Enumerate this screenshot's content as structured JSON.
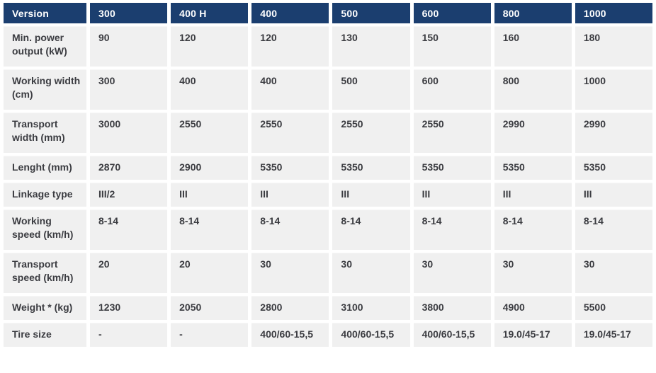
{
  "table": {
    "header": [
      "Version",
      "300",
      "400 H",
      "400",
      "500",
      "600",
      "800",
      "1000"
    ],
    "rows": [
      {
        "label": "Min. power output (kW)",
        "values": [
          "90",
          "120",
          "120",
          "130",
          "150",
          "160",
          "180"
        ]
      },
      {
        "label": "Working width (cm)",
        "values": [
          "300",
          "400",
          "400",
          "500",
          "600",
          "800",
          "1000"
        ]
      },
      {
        "label": "Transport width (mm)",
        "values": [
          "3000",
          "2550",
          "2550",
          "2550",
          "2550",
          "2990",
          "2990"
        ]
      },
      {
        "label": "Lenght (mm)",
        "values": [
          "2870",
          "2900",
          "5350",
          "5350",
          "5350",
          "5350",
          "5350"
        ]
      },
      {
        "label": "Linkage type",
        "values": [
          "III/2",
          "III",
          "III",
          "III",
          "III",
          "III",
          "III"
        ]
      },
      {
        "label": "Working speed (km/h)",
        "values": [
          "8-14",
          "8-14",
          "8-14",
          "8-14",
          "8-14",
          "8-14",
          "8-14"
        ]
      },
      {
        "label": "Transport speed (km/h)",
        "values": [
          "20",
          "20",
          "30",
          "30",
          "30",
          "30",
          "30"
        ]
      },
      {
        "label": "Weight * (kg)",
        "values": [
          "1230",
          "2050",
          "2800",
          "3100",
          "3800",
          "4900",
          "5500"
        ]
      },
      {
        "label": "Tire size",
        "values": [
          "-",
          "-",
          "400/60-15,5",
          "400/60-15,5",
          "400/60-15,5",
          "19.0/45-17",
          "19.0/45-17"
        ]
      }
    ],
    "colors": {
      "header_bg": "#1b3e6f",
      "header_text": "#ffffff",
      "cell_bg": "#f0f0f0",
      "cell_text": "#3b3c41",
      "gap": "#ffffff"
    }
  }
}
